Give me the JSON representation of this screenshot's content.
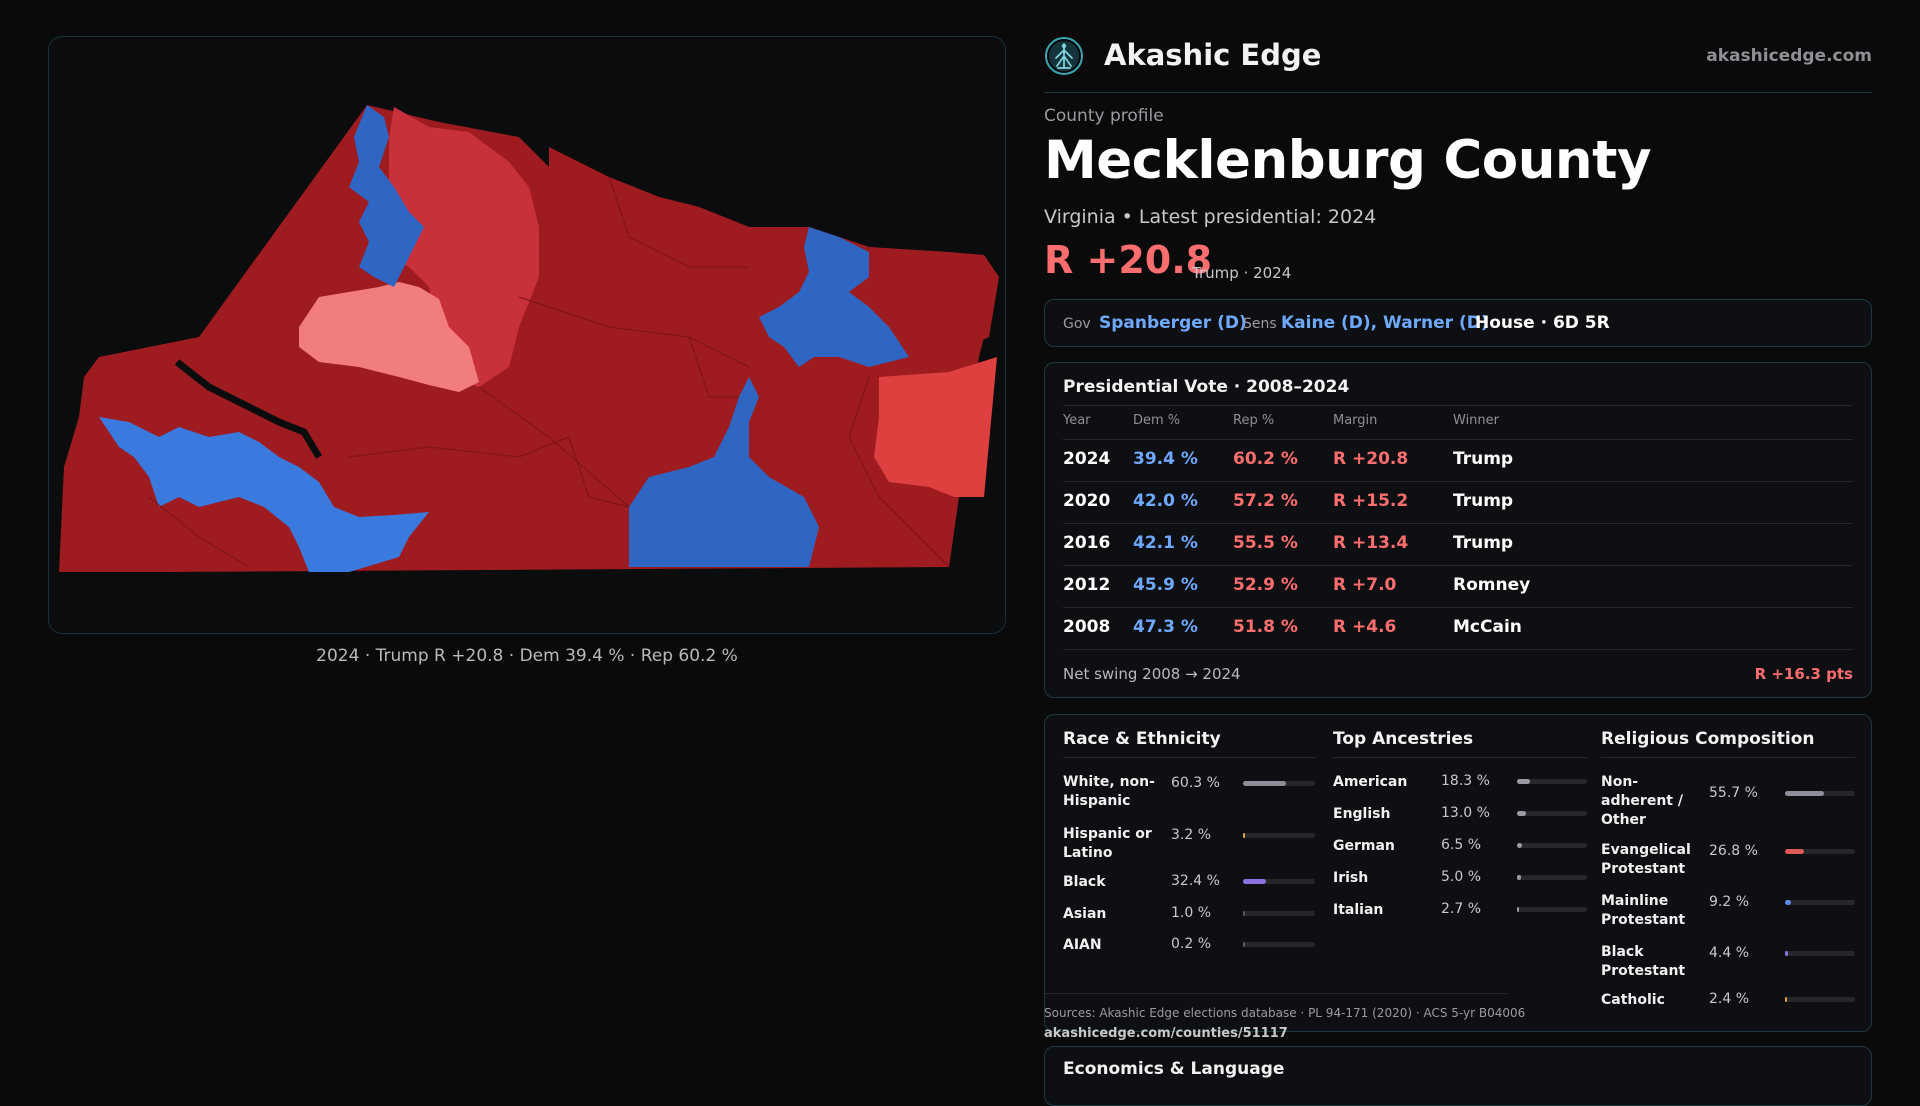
{
  "map": {
    "caption": "2024 · Trump R +20.8 · Dem 39.4 % · Rep 60.2 %",
    "colors": {
      "strong_r": "#9e1b20",
      "med_r": "#c8303a",
      "light_r": "#de3f3f",
      "lean_r": "#f27d7d",
      "d": "#2f66c4",
      "d_light": "#3a7ade",
      "water": "#0b0c0e"
    }
  },
  "brand": {
    "name": "Akashic Edge",
    "url": "akashicedge.com",
    "logo_icon": "tree-of-life-icon"
  },
  "profile": {
    "kicker": "County profile",
    "name": "Mecklenburg County",
    "subline": "Virginia • Latest presidential: 2024",
    "margin": "R +20.8",
    "margin_note": "Trump · 2024"
  },
  "officials": {
    "gov_label": "Gov",
    "gov": "Spanberger (D)",
    "sens_label": "Sens",
    "sens": "Kaine (D), Warner (D)",
    "house": "House · 6D 5R"
  },
  "presidential": {
    "title": "Presidential Vote · 2008–2024",
    "headers": [
      "Year",
      "Dem %",
      "Rep %",
      "Margin",
      "Winner"
    ],
    "rows": [
      {
        "year": "2024",
        "dem": "39.4 %",
        "rep": "60.2 %",
        "margin": "R +20.8",
        "winner": "Trump"
      },
      {
        "year": "2020",
        "dem": "42.0 %",
        "rep": "57.2 %",
        "margin": "R +15.2",
        "winner": "Trump"
      },
      {
        "year": "2016",
        "dem": "42.1 %",
        "rep": "55.5 %",
        "margin": "R +13.4",
        "winner": "Trump"
      },
      {
        "year": "2012",
        "dem": "45.9 %",
        "rep": "52.9 %",
        "margin": "R +7.0",
        "winner": "Romney"
      },
      {
        "year": "2008",
        "dem": "47.3 %",
        "rep": "51.8 %",
        "margin": "R +4.6",
        "winner": "McCain"
      }
    ],
    "swing_label": "Net swing 2008 → 2024",
    "swing_value": "R +16.3 pts"
  },
  "race": {
    "title": "Race & Ethnicity",
    "items": [
      {
        "label": "White, non-Hispanic",
        "value": "60.3 %",
        "pct": 60.3,
        "color": "#8e8e98"
      },
      {
        "label": "Hispanic or Latino",
        "value": "3.2 %",
        "pct": 3.2,
        "color": "#e0a040"
      },
      {
        "label": "Black",
        "value": "32.4 %",
        "pct": 32.4,
        "color": "#8a72e0"
      },
      {
        "label": "Asian",
        "value": "1.0 %",
        "pct": 1.0,
        "color": "#5a5a62"
      },
      {
        "label": "AIAN",
        "value": "0.2 %",
        "pct": 0.2,
        "color": "#5a5a62"
      }
    ]
  },
  "ancestry": {
    "title": "Top Ancestries",
    "items": [
      {
        "label": "American",
        "value": "18.3 %",
        "pct": 18.3,
        "color": "#9a9aa4"
      },
      {
        "label": "English",
        "value": "13.0 %",
        "pct": 13.0,
        "color": "#9a9aa4"
      },
      {
        "label": "German",
        "value": "6.5 %",
        "pct": 6.5,
        "color": "#9a9aa4"
      },
      {
        "label": "Irish",
        "value": "5.0 %",
        "pct": 5.0,
        "color": "#9a9aa4"
      },
      {
        "label": "Italian",
        "value": "2.7 %",
        "pct": 2.7,
        "color": "#9a9aa4"
      }
    ]
  },
  "religion": {
    "title": "Religious Composition",
    "items": [
      {
        "label": "Non-adherent / Other",
        "value": "55.7 %",
        "pct": 55.7,
        "color": "#8e8e98"
      },
      {
        "label": "Evangelical Protestant",
        "value": "26.8 %",
        "pct": 26.8,
        "color": "#e05a5a"
      },
      {
        "label": "Mainline Protestant",
        "value": "9.2 %",
        "pct": 9.2,
        "color": "#5a8ae8"
      },
      {
        "label": "Black Protestant",
        "value": "4.4 %",
        "pct": 4.4,
        "color": "#8a72e0"
      },
      {
        "label": "Catholic",
        "value": "2.4 %",
        "pct": 2.4,
        "color": "#e0a040"
      }
    ]
  },
  "sources": {
    "text": "Sources: Akashic Edge elections database · PL 94-171 (2020) · ACS 5-yr B04006",
    "url": "akashicedge.com/counties/51117"
  },
  "economics": {
    "title": "Economics & Language"
  }
}
